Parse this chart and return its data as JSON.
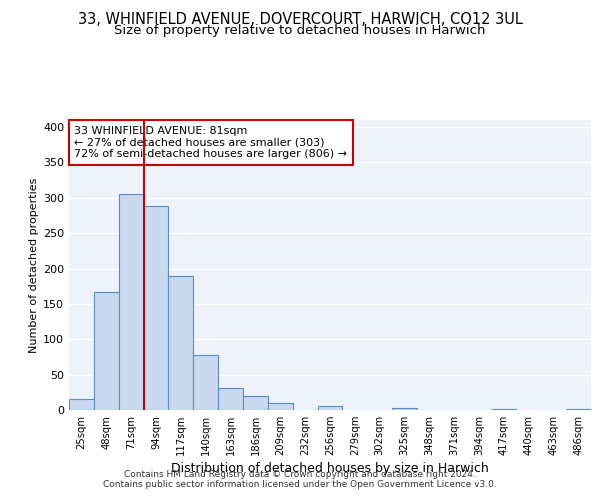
{
  "title": "33, WHINFIELD AVENUE, DOVERCOURT, HARWICH, CO12 3UL",
  "subtitle": "Size of property relative to detached houses in Harwich",
  "xlabel": "Distribution of detached houses by size in Harwich",
  "ylabel": "Number of detached properties",
  "bar_labels": [
    "25sqm",
    "48sqm",
    "71sqm",
    "94sqm",
    "117sqm",
    "140sqm",
    "163sqm",
    "186sqm",
    "209sqm",
    "232sqm",
    "256sqm",
    "279sqm",
    "302sqm",
    "325sqm",
    "348sqm",
    "371sqm",
    "394sqm",
    "417sqm",
    "440sqm",
    "463sqm",
    "486sqm"
  ],
  "bar_values": [
    15,
    167,
    305,
    289,
    190,
    78,
    31,
    20,
    10,
    0,
    6,
    0,
    0,
    3,
    0,
    0,
    0,
    2,
    0,
    0,
    2
  ],
  "bar_color": "#c9d9f0",
  "bar_edge_color": "#5b8cc8",
  "vline_color": "#cc0000",
  "annotation_title": "33 WHINFIELD AVENUE: 81sqm",
  "annotation_line1": "← 27% of detached houses are smaller (303)",
  "annotation_line2": "72% of semi-detached houses are larger (806) →",
  "annotation_box_color": "#ffffff",
  "annotation_box_edge_color": "#cc0000",
  "ylim": [
    0,
    410
  ],
  "yticks": [
    0,
    50,
    100,
    150,
    200,
    250,
    300,
    350,
    400
  ],
  "background_color": "#eef2fa",
  "footer1": "Contains HM Land Registry data © Crown copyright and database right 2024.",
  "footer2": "Contains public sector information licensed under the Open Government Licence v3.0.",
  "title_fontsize": 10.5,
  "subtitle_fontsize": 9.5
}
